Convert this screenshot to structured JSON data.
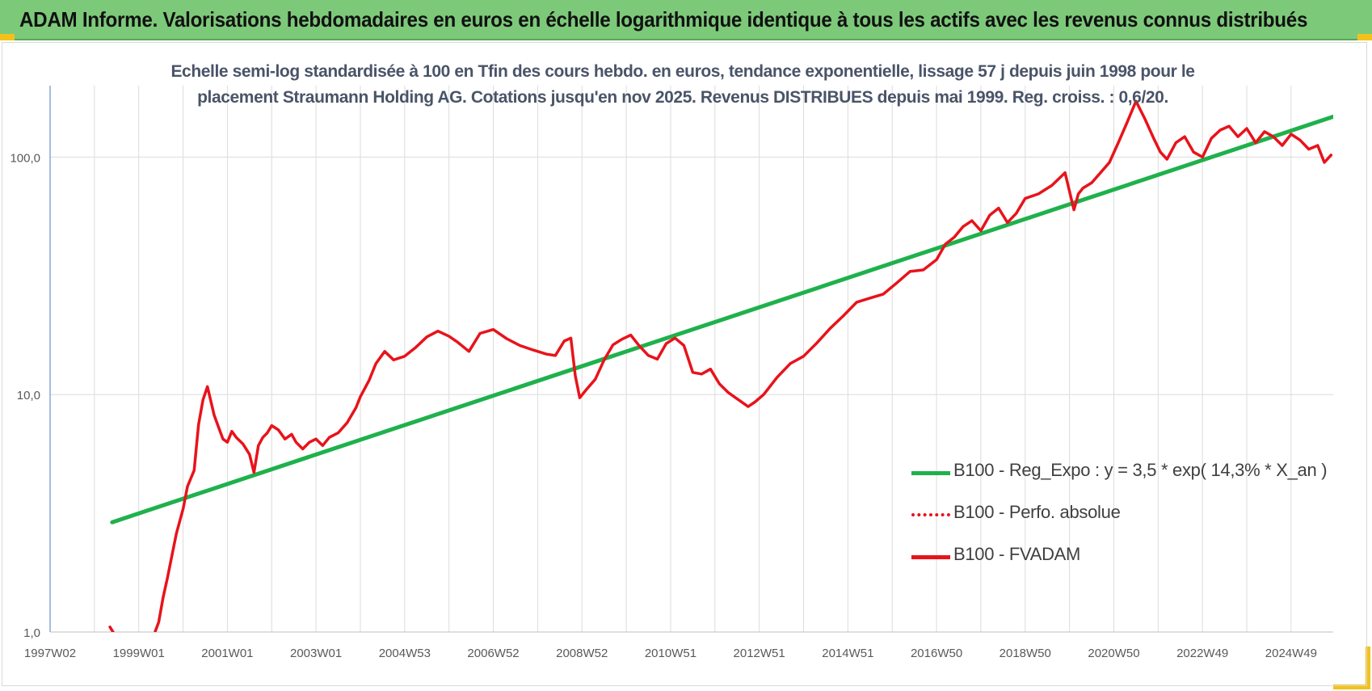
{
  "banner": {
    "title": "ADAM Informe. Valorisations hebdomadaires en euros en échelle logarithmique identique à tous les actifs avec les revenus connus distribués"
  },
  "colors": {
    "banner_bg": "#7dc97a",
    "corner_marks": "#f2c21b",
    "regression_line": "#1fb14c",
    "fvadam_line": "#e8131b",
    "perf_line": "#e8131b",
    "grid": "#d9d9d9",
    "axis_text": "#595959"
  },
  "chart_data": {
    "type": "line",
    "title": "Echelle semi-log standardisée à 100 en Tfin des cours hebdo. en euros, tendance exponentielle, lissage 57 j depuis juin 1998 pour le placement Straumann Holding AG. Cotations jusqu'en nov 2025. Revenus DISTRIBUES depuis mai 1999. Reg. croiss. : 0,6/20.",
    "y_scale": "log",
    "ylim": [
      1,
      200
    ],
    "xlim": [
      1997.0,
      2025.95
    ],
    "y_ticks": [
      {
        "value": 1,
        "label": "1,0"
      },
      {
        "value": 10,
        "label": "10,0"
      },
      {
        "value": 100,
        "label": "100,0"
      }
    ],
    "x_ticks": [
      {
        "value": 1997.0,
        "label": "1997W02"
      },
      {
        "value": 1999.0,
        "label": "1999W01"
      },
      {
        "value": 2001.0,
        "label": "2001W01"
      },
      {
        "value": 2003.0,
        "label": "2003W01"
      },
      {
        "value": 2005.0,
        "label": "2004W53"
      },
      {
        "value": 2007.0,
        "label": "2006W52"
      },
      {
        "value": 2009.0,
        "label": "2008W52"
      },
      {
        "value": 2011.0,
        "label": "2010W51"
      },
      {
        "value": 2013.0,
        "label": "2012W51"
      },
      {
        "value": 2015.0,
        "label": "2014W51"
      },
      {
        "value": 2017.0,
        "label": "2016W50"
      },
      {
        "value": 2019.0,
        "label": "2018W50"
      },
      {
        "value": 2021.0,
        "label": "2020W50"
      },
      {
        "value": 2023.0,
        "label": "2022W49"
      },
      {
        "value": 2025.0,
        "label": "2024W49"
      }
    ],
    "grid": true,
    "legend_position": "right",
    "series": [
      {
        "name": "B100 - Reg_Expo : y = 3,5 * exp( 14,3% * X_an )",
        "color": "#1fb14c",
        "style": "solid",
        "x": [
          1998.4,
          2025.95
        ],
        "y": [
          2.9,
          148
        ]
      },
      {
        "name": "B100 - Perfo. absolue",
        "color": "#e8131b",
        "style": "dotted",
        "x": [],
        "y": []
      },
      {
        "name": "B100 - FVADAM",
        "color": "#e8131b",
        "style": "solid",
        "x": [
          1998.35,
          1998.45,
          1998.55,
          1998.7,
          1998.85,
          1999.0,
          1999.2,
          1999.35,
          1999.45,
          1999.55,
          1999.65,
          1999.75,
          1999.85,
          2000.0,
          2000.1,
          2000.25,
          2000.3,
          2000.35,
          2000.45,
          2000.55,
          2000.7,
          2000.8,
          2000.9,
          2001.0,
          2001.1,
          2001.2,
          2001.35,
          2001.5,
          2001.6,
          2001.7,
          2001.8,
          2001.9,
          2002.0,
          2002.15,
          2002.3,
          2002.45,
          2002.55,
          2002.7,
          2002.85,
          2003.0,
          2003.15,
          2003.3,
          2003.5,
          2003.7,
          2003.9,
          2004.0,
          2004.2,
          2004.35,
          2004.55,
          2004.75,
          2005.0,
          2005.25,
          2005.5,
          2005.75,
          2006.0,
          2006.2,
          2006.45,
          2006.7,
          2007.0,
          2007.3,
          2007.6,
          2007.9,
          2008.2,
          2008.4,
          2008.6,
          2008.75,
          2008.85,
          2008.95,
          2009.1,
          2009.3,
          2009.5,
          2009.7,
          2009.9,
          2010.1,
          2010.3,
          2010.5,
          2010.7,
          2010.9,
          2011.1,
          2011.3,
          2011.5,
          2011.7,
          2011.9,
          2012.1,
          2012.3,
          2012.5,
          2012.75,
          2012.9,
          2013.1,
          2013.4,
          2013.7,
          2014.0,
          2014.3,
          2014.6,
          2014.9,
          2015.2,
          2015.5,
          2015.8,
          2016.1,
          2016.4,
          2016.7,
          2017.0,
          2017.2,
          2017.4,
          2017.6,
          2017.8,
          2018.0,
          2018.2,
          2018.4,
          2018.6,
          2018.8,
          2019.0,
          2019.3,
          2019.6,
          2019.9,
          2020.1,
          2020.2,
          2020.3,
          2020.5,
          2020.7,
          2020.9,
          2021.1,
          2021.3,
          2021.5,
          2021.7,
          2021.9,
          2022.05,
          2022.2,
          2022.4,
          2022.6,
          2022.8,
          2023.0,
          2023.2,
          2023.4,
          2023.6,
          2023.8,
          2024.0,
          2024.2,
          2024.4,
          2024.6,
          2024.8,
          2025.0,
          2025.2,
          2025.4,
          2025.6,
          2025.75,
          2025.9
        ],
        "y": [
          1.05,
          0.98,
          0.95,
          0.93,
          0.95,
          0.97,
          0.96,
          0.98,
          1.1,
          1.4,
          1.7,
          2.1,
          2.6,
          3.3,
          4.1,
          4.8,
          6.0,
          7.5,
          9.5,
          10.8,
          8.2,
          7.3,
          6.5,
          6.3,
          7.0,
          6.6,
          6.2,
          5.6,
          4.7,
          6.1,
          6.6,
          6.9,
          7.4,
          7.1,
          6.5,
          6.8,
          6.3,
          5.9,
          6.3,
          6.5,
          6.1,
          6.6,
          6.9,
          7.6,
          8.8,
          9.8,
          11.5,
          13.5,
          15.2,
          14.0,
          14.5,
          15.8,
          17.5,
          18.5,
          17.6,
          16.6,
          15.2,
          18.1,
          18.8,
          17.2,
          16.1,
          15.4,
          14.8,
          14.6,
          16.8,
          17.3,
          12.0,
          9.7,
          10.5,
          11.6,
          14.0,
          16.2,
          17.1,
          17.8,
          16.0,
          14.6,
          14.1,
          16.4,
          17.3,
          16.1,
          12.4,
          12.2,
          12.8,
          11.1,
          10.2,
          9.6,
          8.9,
          9.3,
          10.0,
          11.8,
          13.5,
          14.5,
          16.5,
          19.0,
          21.5,
          24.5,
          25.5,
          26.5,
          29.5,
          33.0,
          33.5,
          37.0,
          43.0,
          46.0,
          51.0,
          54.0,
          49.0,
          57.0,
          61.0,
          53.0,
          58.0,
          67.0,
          70.0,
          76.0,
          86.0,
          60.0,
          70.0,
          74.0,
          78.0,
          86.0,
          95.0,
          115.0,
          140.0,
          172.0,
          145.0,
          120.0,
          105.0,
          98.0,
          115.0,
          122.0,
          105.0,
          100.0,
          120.0,
          130.0,
          135.0,
          122.0,
          132.0,
          115.0,
          128.0,
          122.0,
          112.0,
          125.0,
          118.0,
          108.0,
          112.0,
          95.0,
          102.0
        ]
      }
    ]
  }
}
